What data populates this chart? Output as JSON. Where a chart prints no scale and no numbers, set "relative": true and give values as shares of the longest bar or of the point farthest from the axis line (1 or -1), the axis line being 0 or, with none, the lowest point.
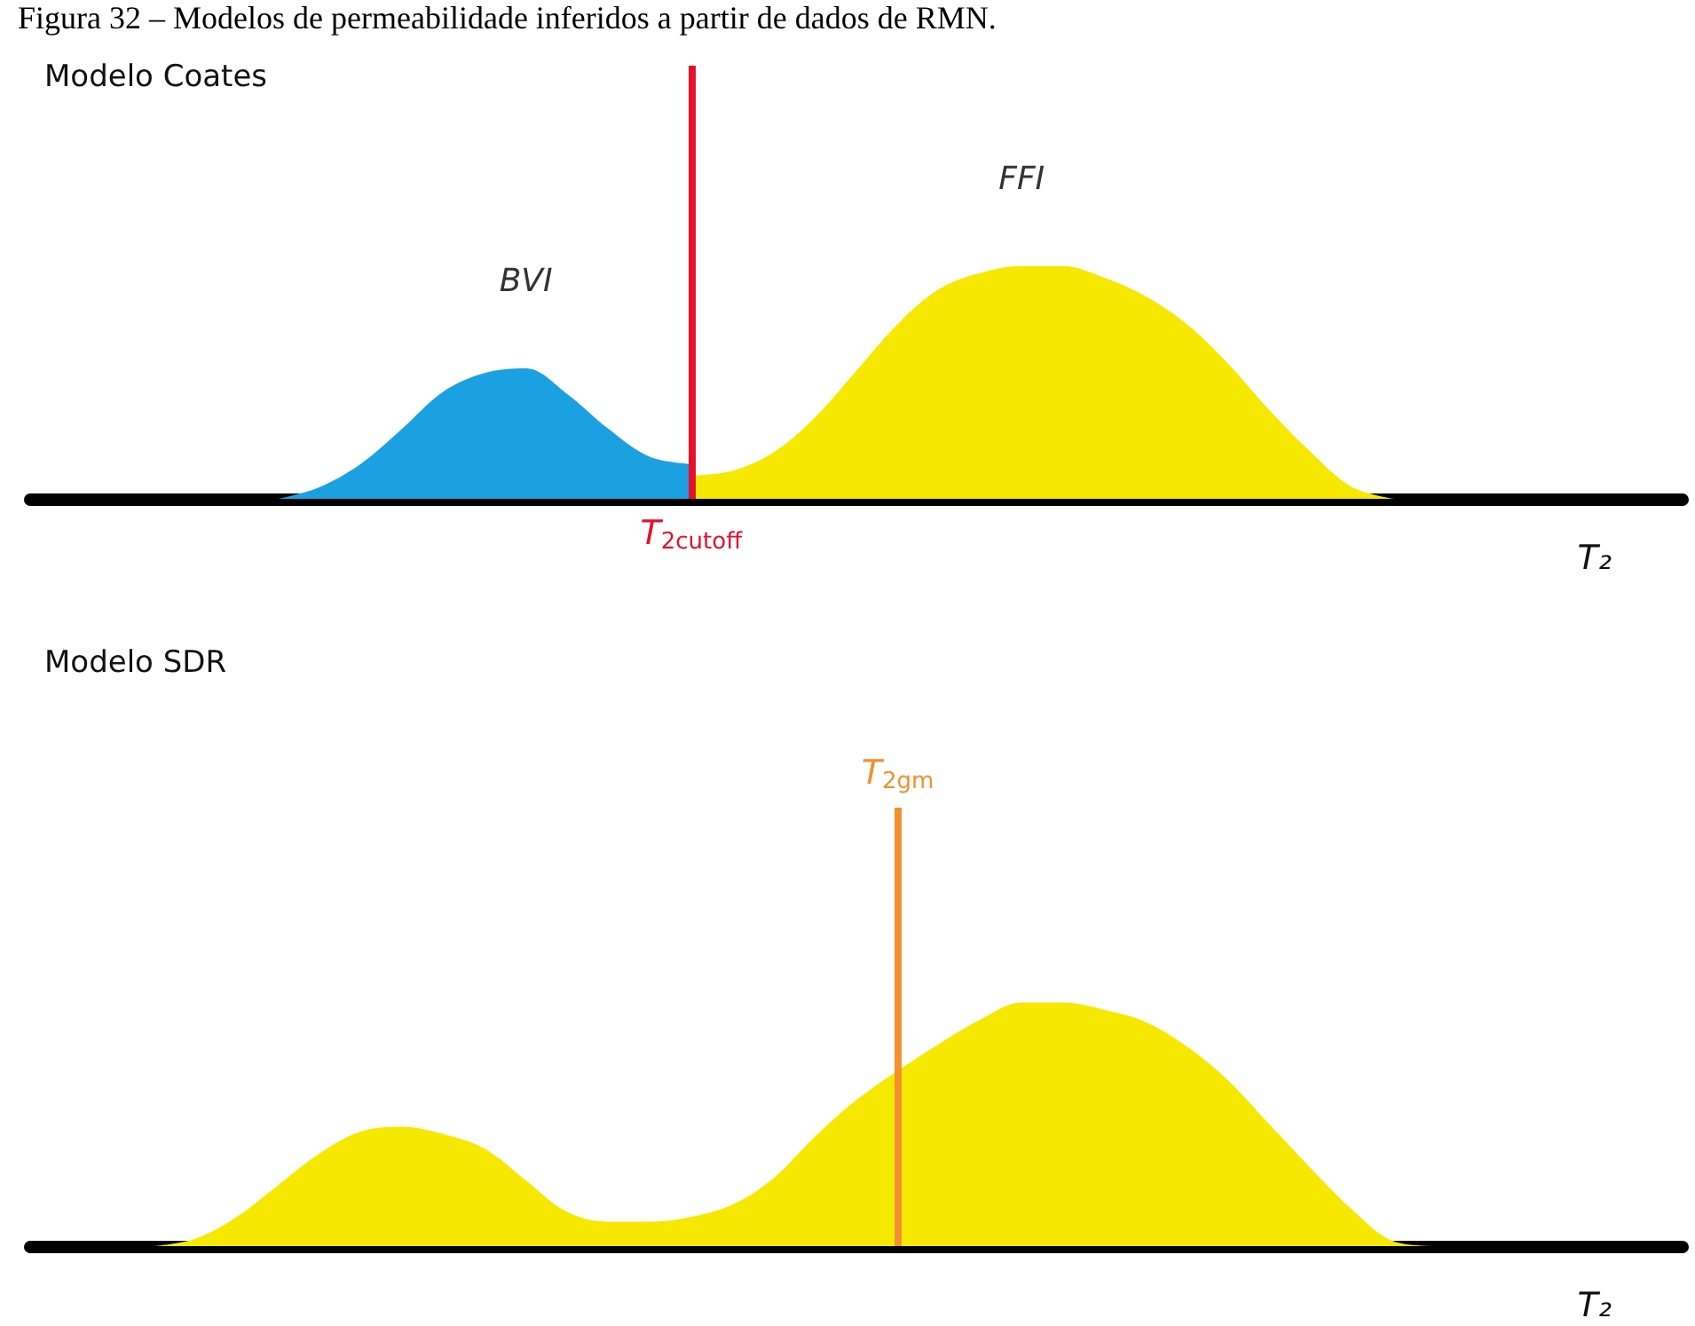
{
  "chart_data": [
    {
      "type": "area",
      "title": "Modelo Coates",
      "xlabel": "T₂",
      "relative": true,
      "annotations": [
        "Figura 32 – Modelos de permeabilidade inferidos a partir de dados de RMN."
      ],
      "categories": [
        null,
        null,
        null,
        null,
        null,
        null,
        null,
        null,
        null,
        null,
        null,
        null,
        null,
        null,
        null,
        null,
        null,
        null,
        null,
        null,
        null,
        null,
        null,
        null,
        null,
        null,
        null,
        null,
        null,
        null,
        null,
        null,
        null,
        null,
        null,
        null,
        null,
        null,
        null,
        null,
        null
      ],
      "series": [
        {
          "name": "BVI",
          "color": "#1ba1e2",
          "values": [
            null,
            null,
            null,
            null,
            null,
            null,
            0,
            0.05,
            0.15,
            0.3,
            0.46,
            0.54,
            0.56,
            0.45,
            0.3,
            0.18,
            0.15,
            null,
            null,
            null,
            null,
            null,
            null,
            null,
            null,
            null,
            null,
            null,
            null,
            null,
            null,
            null,
            null,
            null,
            null,
            null,
            null,
            null,
            null,
            null,
            null
          ]
        },
        {
          "name": "FFI",
          "color": "#f7e800",
          "values": [
            null,
            null,
            null,
            null,
            null,
            null,
            null,
            null,
            null,
            null,
            null,
            null,
            null,
            null,
            null,
            null,
            0.1,
            0.12,
            0.2,
            0.35,
            0.55,
            0.75,
            0.9,
            0.97,
            1,
            1,
            0.95,
            0.87,
            0.75,
            0.58,
            0.38,
            0.2,
            0.05,
            0,
            null,
            null,
            null,
            null,
            null,
            null,
            null
          ]
        }
      ],
      "ref_lines": [
        {
          "axis": "x",
          "label": "T$_{2cutoff}$",
          "color": "#e2122e"
        }
      ]
    },
    {
      "type": "area",
      "title": "Modelo SDR",
      "xlabel": "T₂",
      "relative": true,
      "categories": [
        null,
        null,
        null,
        null,
        null,
        null,
        null,
        null,
        null,
        null,
        null,
        null,
        null,
        null,
        null,
        null,
        null,
        null,
        null,
        null,
        null,
        null,
        null,
        null,
        null,
        null,
        null,
        null,
        null,
        null,
        null,
        null,
        null,
        null,
        null,
        null,
        null,
        null,
        null,
        null,
        null
      ],
      "series": [
        {
          "color": "#f7e800",
          "values": [
            null,
            null,
            null,
            0,
            0.03,
            0.12,
            0.25,
            0.38,
            0.47,
            0.49,
            0.46,
            0.4,
            0.27,
            0.14,
            0.1,
            0.1,
            0.12,
            0.17,
            0.28,
            0.45,
            0.6,
            0.72,
            0.83,
            0.93,
            1,
            1,
            0.97,
            0.92,
            0.82,
            0.68,
            0.5,
            0.32,
            0.15,
            0.02,
            0,
            null,
            null,
            null,
            null,
            null,
            null
          ]
        }
      ],
      "ref_lines": [
        {
          "axis": "x",
          "label": "T$_{2gm}$",
          "color": "#f39030"
        }
      ]
    }
  ]
}
